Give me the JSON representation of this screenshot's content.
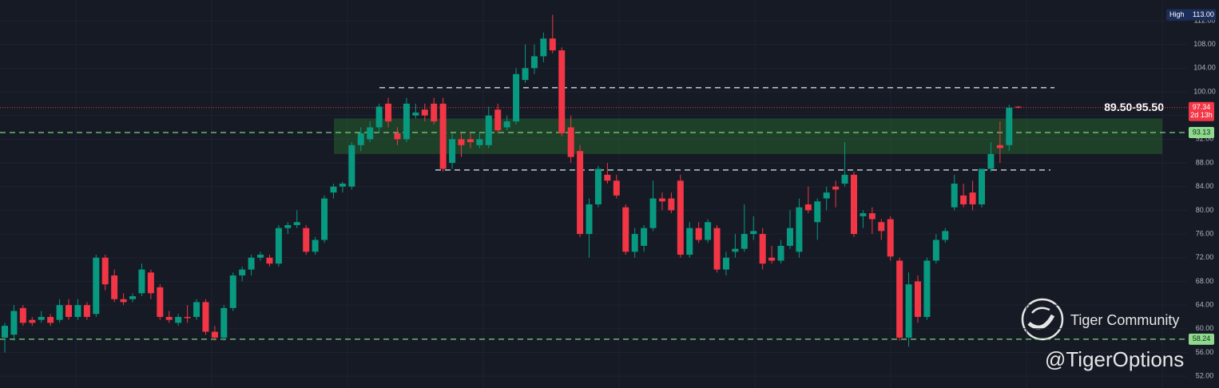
{
  "chart_data": {
    "type": "candlestick",
    "ylim": [
      50,
      115.5
    ],
    "yticks": [
      {
        "value": 52,
        "label": "52.00"
      },
      {
        "value": 56,
        "label": "56.00"
      },
      {
        "value": 60,
        "label": "60.00"
      },
      {
        "value": 64,
        "label": "64.00"
      },
      {
        "value": 68,
        "label": "68.00"
      },
      {
        "value": 72,
        "label": "72.00"
      },
      {
        "value": 76,
        "label": "76.00"
      },
      {
        "value": 80,
        "label": "80.00"
      },
      {
        "value": 84,
        "label": "84.00"
      },
      {
        "value": 88,
        "label": "88.00"
      },
      {
        "value": 92,
        "label": "92.00"
      },
      {
        "value": 96,
        "label": "96.00"
      },
      {
        "value": 100,
        "label": "100.00"
      },
      {
        "value": 104,
        "label": "104.00"
      },
      {
        "value": 108,
        "label": "108.00"
      },
      {
        "value": 112,
        "label": "112.00"
      }
    ],
    "grid": true,
    "up_color": "#089981",
    "down_color": "#f23645",
    "ohlc": [
      [
        58.5,
        61,
        56,
        60.5
      ],
      [
        59,
        64,
        58,
        63
      ],
      [
        63.5,
        64,
        60.5,
        61
      ],
      [
        61.5,
        62,
        60.5,
        61
      ],
      [
        61.5,
        63,
        61,
        62
      ],
      [
        62,
        62.5,
        60.5,
        61
      ],
      [
        61.5,
        65,
        61,
        64
      ],
      [
        64,
        65,
        61.5,
        62
      ],
      [
        62,
        65,
        61.5,
        64
      ],
      [
        64,
        64.5,
        61.5,
        62
      ],
      [
        62.5,
        72.5,
        62,
        72
      ],
      [
        72,
        72.5,
        66.5,
        67.5
      ],
      [
        69,
        70,
        64.5,
        65
      ],
      [
        65,
        66,
        64,
        64.5
      ],
      [
        65,
        66,
        64.5,
        65.5
      ],
      [
        66,
        71,
        65.5,
        70
      ],
      [
        69.5,
        70,
        65,
        66
      ],
      [
        67,
        67.5,
        61.5,
        62
      ],
      [
        62,
        63,
        61,
        61.5
      ],
      [
        61,
        62.5,
        60.5,
        62
      ],
      [
        62,
        64,
        61,
        61.8
      ],
      [
        62,
        65,
        61.5,
        64.5
      ],
      [
        64.5,
        65,
        59,
        59.5
      ],
      [
        59.5,
        60.5,
        58,
        58.5
      ],
      [
        58.5,
        64,
        58,
        63.5
      ],
      [
        63.5,
        69.5,
        63,
        69
      ],
      [
        69,
        70.5,
        68,
        70
      ],
      [
        70,
        72.5,
        69,
        72
      ],
      [
        72,
        73,
        71.5,
        72.5
      ],
      [
        72,
        72.5,
        70.5,
        71
      ],
      [
        71,
        77.5,
        70.5,
        77
      ],
      [
        77,
        78,
        76,
        77.5
      ],
      [
        77.5,
        80,
        77,
        78
      ],
      [
        77,
        77.5,
        72.5,
        73
      ],
      [
        73,
        75.5,
        72.5,
        75
      ],
      [
        75,
        82.5,
        74.5,
        82
      ],
      [
        83,
        84.5,
        82,
        84
      ],
      [
        84,
        84.8,
        83,
        84.5
      ],
      [
        84,
        91.5,
        83.5,
        91
      ],
      [
        91,
        94,
        90,
        93
      ],
      [
        92,
        95,
        91.5,
        94
      ],
      [
        94,
        98,
        93,
        97.5
      ],
      [
        98,
        99,
        94,
        95
      ],
      [
        93,
        94,
        91,
        92
      ],
      [
        92,
        99,
        91.5,
        98
      ],
      [
        96,
        98,
        95.5,
        96.5
      ],
      [
        97,
        98,
        95,
        96
      ],
      [
        98,
        99,
        94.5,
        95
      ],
      [
        98,
        99,
        86.5,
        87
      ],
      [
        88,
        93,
        87,
        92
      ],
      [
        92,
        93,
        89,
        91
      ],
      [
        92,
        93,
        90.5,
        91.5
      ],
      [
        91,
        93,
        90.5,
        92
      ],
      [
        91,
        97.5,
        90.5,
        96
      ],
      [
        97,
        98,
        93,
        93.5
      ],
      [
        94,
        96,
        93.5,
        95
      ],
      [
        95,
        104,
        94.5,
        103
      ],
      [
        102,
        108,
        101.5,
        104
      ],
      [
        104,
        108,
        103,
        106
      ],
      [
        106,
        110,
        105,
        109
      ],
      [
        109,
        113,
        106.5,
        107
      ],
      [
        107,
        107.5,
        92.5,
        93
      ],
      [
        94,
        96,
        88,
        89
      ],
      [
        90,
        91,
        75.5,
        76
      ],
      [
        76,
        82,
        72,
        81
      ],
      [
        81,
        87.5,
        80.5,
        87
      ],
      [
        86,
        88,
        84.5,
        85
      ],
      [
        85,
        86,
        82,
        82.5
      ],
      [
        80.5,
        81,
        72.5,
        73
      ],
      [
        73,
        77,
        72,
        76
      ],
      [
        74,
        77.5,
        73,
        77
      ],
      [
        77,
        85,
        76.5,
        82
      ],
      [
        82,
        83,
        80,
        81.5
      ],
      [
        82,
        83,
        79.5,
        80
      ],
      [
        85,
        86,
        72,
        72.5
      ],
      [
        72.5,
        78,
        72,
        77
      ],
      [
        77,
        78,
        74.5,
        75
      ],
      [
        75,
        78.5,
        74.5,
        78
      ],
      [
        77,
        77.5,
        69.5,
        70
      ],
      [
        70,
        73,
        69,
        72
      ],
      [
        73,
        76,
        72,
        73.5
      ],
      [
        73.5,
        81,
        73,
        76
      ],
      [
        76,
        79,
        75,
        76.5
      ],
      [
        76,
        77,
        70,
        71
      ],
      [
        72,
        74,
        71,
        71.5
      ],
      [
        71.5,
        75,
        71,
        74
      ],
      [
        74,
        80,
        73.5,
        77
      ],
      [
        73,
        82,
        72,
        80.5
      ],
      [
        81,
        84,
        79.5,
        80
      ],
      [
        78,
        82,
        75,
        81.5
      ],
      [
        82,
        84,
        80,
        83
      ],
      [
        84,
        85,
        80.5,
        83.5
      ],
      [
        84.5,
        91.5,
        84,
        86
      ],
      [
        86,
        86.5,
        75.5,
        76
      ],
      [
        79,
        80,
        77,
        79.5
      ],
      [
        79.5,
        80.5,
        76,
        78.5
      ],
      [
        78,
        78.5,
        75,
        76.5
      ],
      [
        78.5,
        79,
        71.5,
        72.2
      ],
      [
        71.5,
        72,
        58,
        58.5
      ],
      [
        58.5,
        69.5,
        57,
        67.5
      ],
      [
        68,
        69,
        61,
        62
      ],
      [
        62,
        72,
        61.5,
        71.5
      ],
      [
        71.5,
        76,
        71,
        75
      ],
      [
        75,
        77,
        74.5,
        76.5
      ],
      [
        80.5,
        86,
        80,
        84.5
      ],
      [
        82.5,
        84.5,
        80.5,
        81
      ],
      [
        83,
        85,
        80,
        81
      ],
      [
        81,
        87,
        80.5,
        87
      ],
      [
        87,
        91.5,
        86.5,
        89.5
      ],
      [
        91,
        95,
        88,
        90.5
      ],
      [
        91,
        97.8,
        90,
        97.3
      ],
      [
        97.5,
        97.6,
        97.2,
        97.34
      ]
    ],
    "zone": {
      "label": "89.50-95.50",
      "low": 89.5,
      "high": 95.5
    },
    "resistance_lines": [
      100.7,
      86.8
    ],
    "key_levels": [
      93.13,
      58.24
    ],
    "last_price": 97.34,
    "countdown": "2d 13h",
    "high_title": "High",
    "high": 113,
    "high_label": "113.00",
    "watermark": {
      "title": "Tiger Community",
      "handle": "@TigerOptions"
    }
  }
}
